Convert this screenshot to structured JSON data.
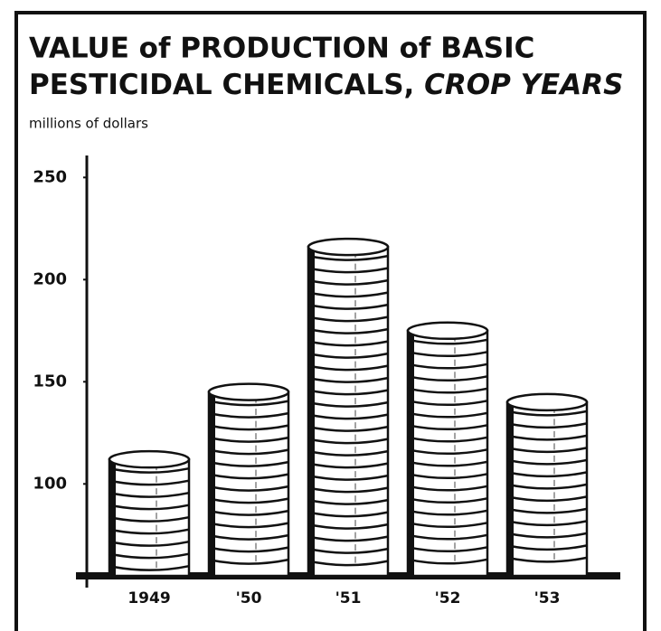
{
  "chart_data": {
    "type": "coin-stack",
    "title": [
      "VALUE of PRODUCTION of BASIC",
      "PESTICIDAL CHEMICALS,",
      "CROP YEARS"
    ],
    "subtitle": "millions of dollars",
    "categories": [
      "1949",
      "'50",
      "'51",
      "'52",
      "'53"
    ],
    "values": [
      112,
      145,
      216,
      175,
      140
    ],
    "color": "#ffffff",
    "ylim": [
      55,
      255
    ],
    "yticks": [
      100,
      150,
      200,
      250
    ],
    "grid": false
  }
}
